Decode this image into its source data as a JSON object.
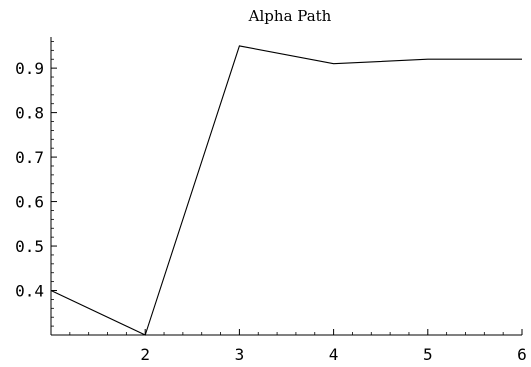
{
  "chart_data": {
    "type": "line",
    "title": "Alpha  Path",
    "xlabel": "",
    "ylabel": "",
    "x": [
      1,
      2,
      3,
      4,
      5,
      6
    ],
    "series": [
      {
        "values": [
          0.4,
          0.3,
          0.95,
          0.91,
          0.92,
          0.92
        ]
      }
    ],
    "xlim": [
      1,
      6
    ],
    "ylim": [
      0.3,
      0.97
    ],
    "x_ticks": [
      2,
      3,
      4,
      5,
      6
    ],
    "x_tick_labels": [
      "2",
      "3",
      "4",
      "5",
      "6"
    ],
    "y_ticks": [
      0.4,
      0.5,
      0.6,
      0.7,
      0.8,
      0.9
    ],
    "y_tick_labels": [
      "0.4",
      "0.5",
      "0.6",
      "0.7",
      "0.8",
      "0.9"
    ],
    "grid": false,
    "legend": "none",
    "line_color": "#000000"
  }
}
